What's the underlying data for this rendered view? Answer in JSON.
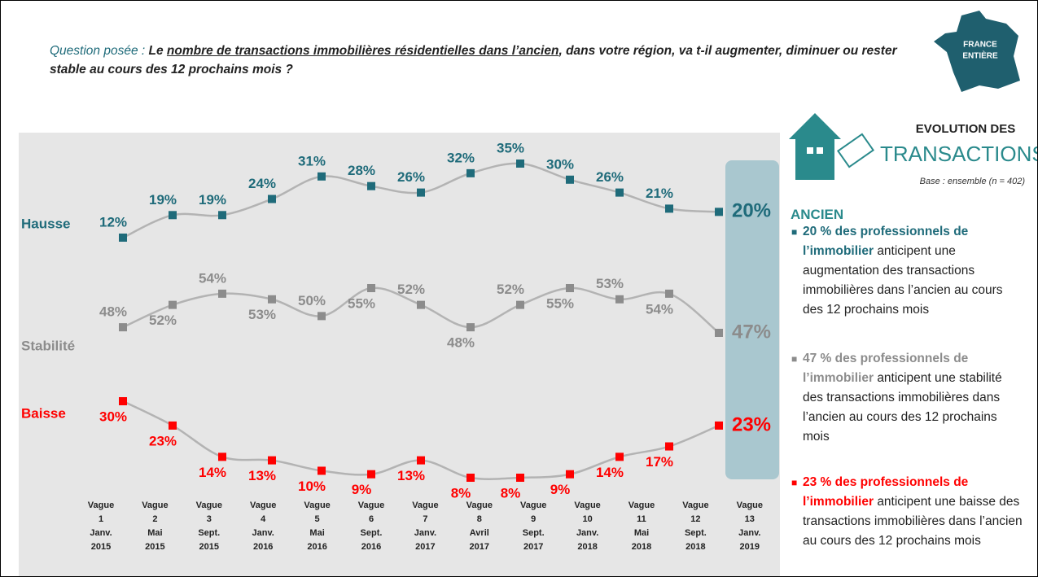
{
  "question": {
    "prefix": "Question posée :",
    "before": "Le",
    "underlined": "nombre de transactions immobilières résidentielles dans l’ancien",
    "after": ", dans votre région, va t-il augmenter, diminuer ou rester stable au cours des 12 prochains mois ?"
  },
  "badge": [
    "FRANCE",
    "ENTIÈRE"
  ],
  "side": {
    "title1": "EVOLUTION DES",
    "title2": "TRANSACTIONS",
    "base": "Base : ensemble (n = 402)",
    "section": "ANCIEN",
    "bullets": [
      {
        "highlight": "20 % des professionnels de l’immobilier",
        "text": "anticipent une augmentation des transactions immobilières  dans l’ancien au cours des 12 prochains mois",
        "color": "#1f6b7a"
      },
      {
        "highlight": "47 % des professionnels de l’immobilier",
        "text": "anticipent une stabilité des transactions immobilières dans l’ancien au cours des 12 prochains mois",
        "color": "#8c8c8c"
      },
      {
        "highlight": "23 % des professionnels de l’immobilier",
        "text": "anticipent une baisse des transactions immobilières dans l’ancien au cours des 12 prochains mois",
        "color": "#ff0000"
      }
    ]
  },
  "chart_data": {
    "type": "line",
    "categories": [
      [
        "Vague",
        "1",
        "Janv.",
        "2015"
      ],
      [
        "Vague",
        "2",
        "Mai",
        "2015"
      ],
      [
        "Vague",
        "3",
        "Sept.",
        "2015"
      ],
      [
        "Vague",
        "4",
        "Janv.",
        "2016"
      ],
      [
        "Vague",
        "5",
        "Mai",
        "2016"
      ],
      [
        "Vague",
        "6",
        "Sept.",
        "2016"
      ],
      [
        "Vague",
        "7",
        "Janv.",
        "2017"
      ],
      [
        "Vague",
        "8",
        "Avril",
        "2017"
      ],
      [
        "Vague",
        "9",
        "Sept.",
        "2017"
      ],
      [
        "Vague",
        "10",
        "Janv.",
        "2018"
      ],
      [
        "Vague",
        "11",
        "Mai",
        "2018"
      ],
      [
        "Vague",
        "12",
        "Sept.",
        "2018"
      ],
      [
        "Vague",
        "13",
        "Janv.",
        "2019"
      ]
    ],
    "series": [
      {
        "name": "Hausse",
        "color": "#1f6b7a",
        "values": [
          12,
          19,
          19,
          24,
          31,
          28,
          26,
          32,
          35,
          30,
          26,
          21,
          20
        ],
        "value_labels": [
          "12%",
          "19%",
          "19%",
          "24%",
          "31%",
          "28%",
          "26%",
          "32%",
          "35%",
          "30%",
          "26%",
          "21%",
          "20%"
        ]
      },
      {
        "name": "Stabilité",
        "color": "#8c8c8c",
        "values": [
          48,
          52,
          54,
          53,
          50,
          55,
          52,
          48,
          52,
          55,
          53,
          54,
          47
        ],
        "value_labels": [
          "48%",
          "52%",
          "54%",
          "53%",
          "50%",
          "55%",
          "52%",
          "48%",
          "52%",
          "55%",
          "53%",
          "54%",
          "47%"
        ]
      },
      {
        "name": "Baisse",
        "color": "#ff0000",
        "values": [
          30,
          23,
          14,
          13,
          10,
          9,
          13,
          8,
          8,
          9,
          14,
          17,
          23
        ],
        "value_labels": [
          "30%",
          "23%",
          "14%",
          "13%",
          "10%",
          "9%",
          "13%",
          "8%",
          "8%",
          "9%",
          "14%",
          "17%",
          "23%"
        ]
      }
    ]
  }
}
